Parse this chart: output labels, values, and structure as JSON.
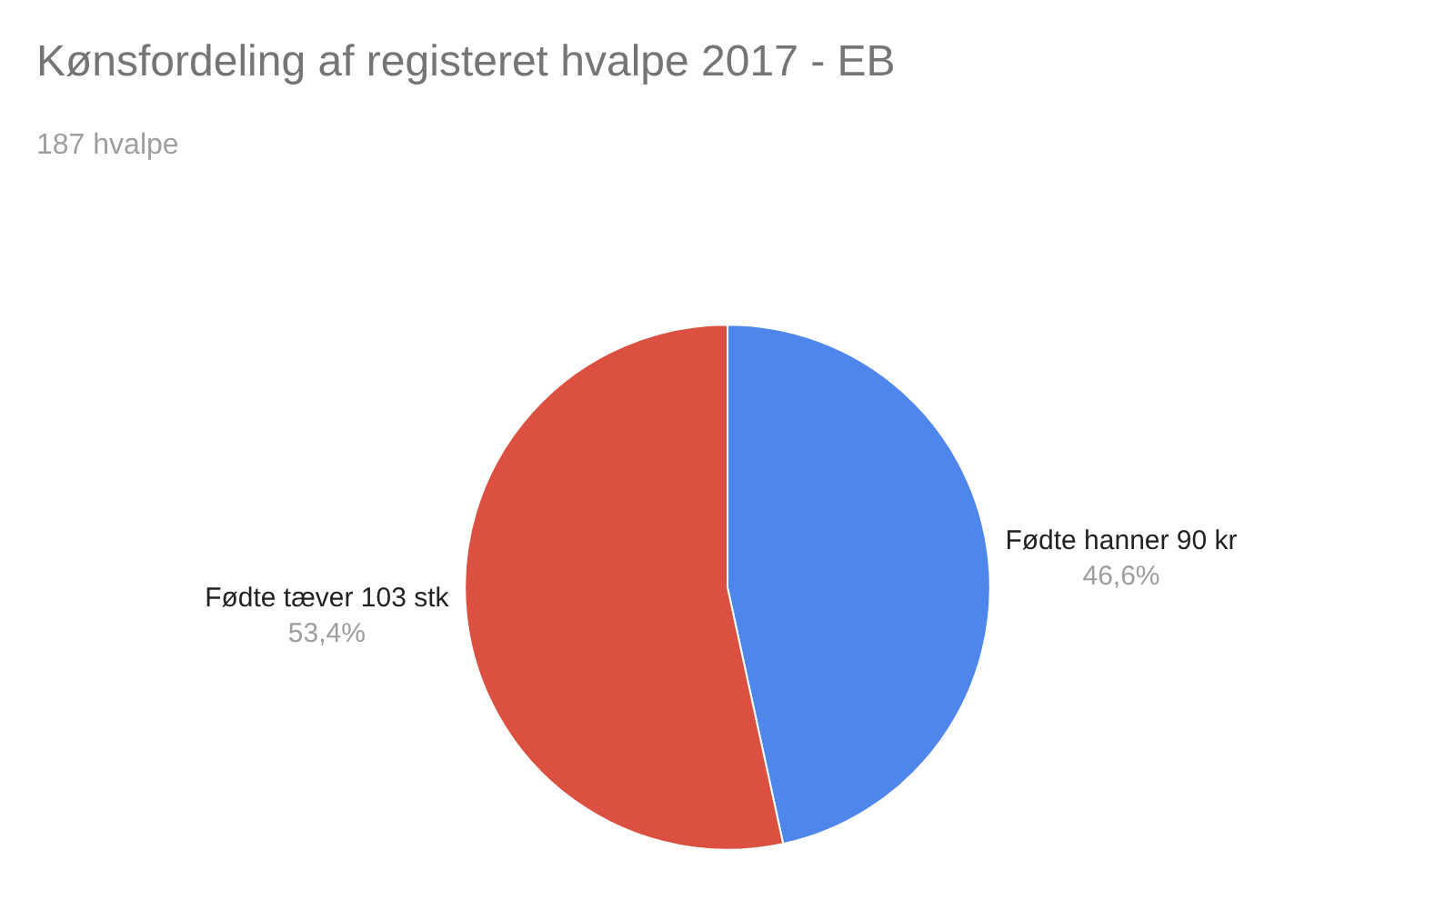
{
  "chart_data": {
    "type": "pie",
    "title": "Kønsfordeling af registeret hvalpe 2017 - EB",
    "subtitle": "187 hvalpe",
    "categories": [
      "Fødte hanner 90 kr",
      "Fødte tæver 103 stk"
    ],
    "values": [
      46.6,
      53.4
    ],
    "value_labels": [
      "46,6%",
      "53,4%"
    ],
    "colors": [
      "#4f86ec",
      "#db5040"
    ],
    "legend": false
  }
}
